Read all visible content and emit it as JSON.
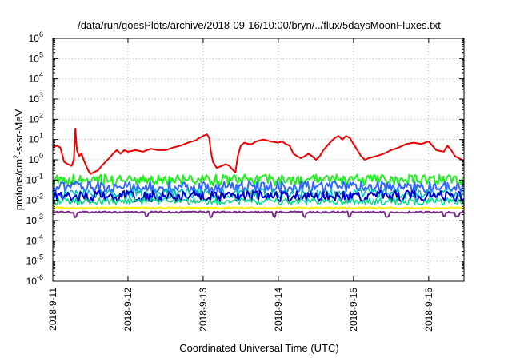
{
  "chart_data": {
    "type": "line",
    "title": "/data/run/goesPlots/archive/2018-09-16/10:00/bryn/../flux/5daysMoonFluxes.txt",
    "xlabel": "Coordinated Universal Time (UTC)",
    "ylabel": "protons/cm²-s-sr-MeV",
    "ylabel_parts": {
      "pre": "protons/cm",
      "sup": "2",
      "post": "-s-sr-MeV"
    },
    "yscale": "log",
    "ylim": [
      1e-06,
      1000000.0
    ],
    "xlim_days": [
      0,
      5.47
    ],
    "grid": true,
    "x_ticks": [
      {
        "day": 0,
        "label": "2018-9-11"
      },
      {
        "day": 1,
        "label": "2018-9-12"
      },
      {
        "day": 2,
        "label": "2018-9-13"
      },
      {
        "day": 3,
        "label": "2018-9-14"
      },
      {
        "day": 4,
        "label": "2018-9-15"
      },
      {
        "day": 5,
        "label": "2018-9-16"
      }
    ],
    "y_ticks": [
      {
        "exp": 6,
        "label": "10",
        "sup": "6"
      },
      {
        "exp": 5,
        "label": "10",
        "sup": "5"
      },
      {
        "exp": 4,
        "label": "10",
        "sup": "4"
      },
      {
        "exp": 3,
        "label": "10",
        "sup": "3"
      },
      {
        "exp": 2,
        "label": "10",
        "sup": "2"
      },
      {
        "exp": 1,
        "label": "10",
        "sup": "1"
      },
      {
        "exp": 0,
        "label": "10",
        "sup": "0"
      },
      {
        "exp": -1,
        "label": "10",
        "sup": "-1"
      },
      {
        "exp": -2,
        "label": "10",
        "sup": "-2"
      },
      {
        "exp": -3,
        "label": "10",
        "sup": "-3"
      },
      {
        "exp": -4,
        "label": "10",
        "sup": "-4"
      },
      {
        "exp": -5,
        "label": "10",
        "sup": "-5"
      },
      {
        "exp": -6,
        "label": "10",
        "sup": "-6"
      }
    ],
    "series": [
      {
        "color": "#ee0000",
        "width": 2,
        "points": [
          [
            0,
            4
          ],
          [
            0.05,
            5
          ],
          [
            0.1,
            4
          ],
          [
            0.15,
            0.8
          ],
          [
            0.2,
            0.6
          ],
          [
            0.25,
            0.5
          ],
          [
            0.28,
            1.0
          ],
          [
            0.3,
            35
          ],
          [
            0.32,
            3
          ],
          [
            0.35,
            1.5
          ],
          [
            0.38,
            2
          ],
          [
            0.42,
            0.8
          ],
          [
            0.47,
            0.3
          ],
          [
            0.5,
            0.2
          ],
          [
            0.55,
            0.25
          ],
          [
            0.6,
            0.3
          ],
          [
            0.65,
            0.5
          ],
          [
            0.7,
            0.8
          ],
          [
            0.75,
            1.2
          ],
          [
            0.8,
            2
          ],
          [
            0.85,
            3
          ],
          [
            0.9,
            2
          ],
          [
            0.95,
            3
          ],
          [
            1.0,
            2.5
          ],
          [
            1.1,
            3
          ],
          [
            1.2,
            2.5
          ],
          [
            1.3,
            3.5
          ],
          [
            1.4,
            3
          ],
          [
            1.5,
            3
          ],
          [
            1.6,
            4
          ],
          [
            1.7,
            5
          ],
          [
            1.8,
            7
          ],
          [
            1.9,
            9
          ],
          [
            1.95,
            12
          ],
          [
            2.0,
            15
          ],
          [
            2.05,
            18
          ],
          [
            2.08,
            12
          ],
          [
            2.1,
            3
          ],
          [
            2.13,
            0.8
          ],
          [
            2.18,
            0.4
          ],
          [
            2.25,
            0.5
          ],
          [
            2.3,
            0.6
          ],
          [
            2.35,
            0.5
          ],
          [
            2.4,
            0.3
          ],
          [
            2.43,
            0.25
          ],
          [
            2.46,
            1.5
          ],
          [
            2.5,
            5
          ],
          [
            2.55,
            7
          ],
          [
            2.6,
            6
          ],
          [
            2.65,
            6
          ],
          [
            2.7,
            8
          ],
          [
            2.8,
            10
          ],
          [
            2.9,
            8
          ],
          [
            3.0,
            7
          ],
          [
            3.05,
            8
          ],
          [
            3.1,
            6
          ],
          [
            3.15,
            5
          ],
          [
            3.2,
            2
          ],
          [
            3.25,
            1.5
          ],
          [
            3.3,
            1.2
          ],
          [
            3.35,
            1.5
          ],
          [
            3.4,
            2
          ],
          [
            3.45,
            1.5
          ],
          [
            3.5,
            1
          ],
          [
            3.55,
            1.5
          ],
          [
            3.6,
            3
          ],
          [
            3.65,
            5
          ],
          [
            3.7,
            8
          ],
          [
            3.75,
            12
          ],
          [
            3.8,
            15
          ],
          [
            3.85,
            10
          ],
          [
            3.9,
            15
          ],
          [
            3.95,
            12
          ],
          [
            4.0,
            6
          ],
          [
            4.05,
            3
          ],
          [
            4.1,
            1.5
          ],
          [
            4.15,
            1
          ],
          [
            4.2,
            1.2
          ],
          [
            4.3,
            1.5
          ],
          [
            4.4,
            2
          ],
          [
            4.5,
            3
          ],
          [
            4.6,
            4
          ],
          [
            4.7,
            6
          ],
          [
            4.8,
            7
          ],
          [
            4.9,
            6
          ],
          [
            5.0,
            8
          ],
          [
            5.05,
            5
          ],
          [
            5.1,
            3
          ],
          [
            5.2,
            2.5
          ],
          [
            5.25,
            5
          ],
          [
            5.3,
            3
          ],
          [
            5.35,
            1.5
          ],
          [
            5.4,
            1.2
          ],
          [
            5.47,
            0.9
          ]
        ]
      },
      {
        "color": "#22ee22",
        "width": 2,
        "base": 0.1,
        "amp": 0.55,
        "seed": 3
      },
      {
        "color": "#3366ff",
        "width": 2,
        "base": 0.045,
        "amp": 0.55,
        "seed": 7
      },
      {
        "color": "#00bbbb",
        "width": 1.5,
        "base": 0.022,
        "amp": 0.5,
        "seed": 11
      },
      {
        "color": "#0000cc",
        "width": 2,
        "base": 0.016,
        "amp": 0.55,
        "seed": 5
      },
      {
        "color": "#00dd88",
        "width": 1.5,
        "base": 0.009,
        "amp": 0.35,
        "seed": 17
      },
      {
        "color": "#ffee00",
        "width": 2,
        "base": 0.0042,
        "amp": 0.08,
        "seed": 23
      },
      {
        "color": "#7a2e8a",
        "width": 2,
        "base": 0.0026,
        "amp": 0.08,
        "seed": 29,
        "dips": [
          0.3,
          1.25,
          2.1,
          2.95,
          3.35,
          3.95,
          4.45,
          5.2,
          5.38
        ]
      }
    ]
  }
}
